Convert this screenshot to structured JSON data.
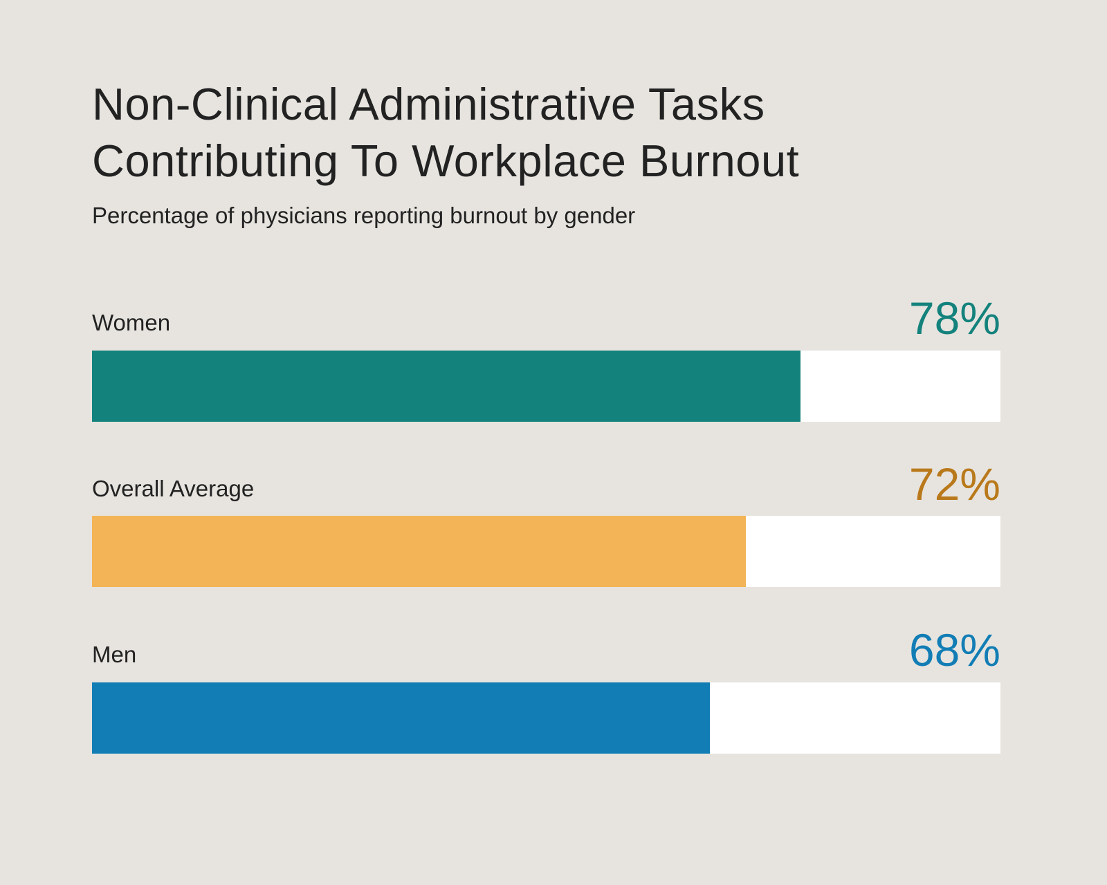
{
  "chart_data": {
    "type": "bar",
    "orientation": "horizontal",
    "title": "Non-Clinical Administrative Tasks Contributing To Workplace Burnout",
    "title_lines": [
      "Non-Clinical Administrative Tasks",
      "Contributing To Workplace Burnout"
    ],
    "subtitle": "Percentage of physicians reporting burnout by gender",
    "xlim": [
      0,
      100
    ],
    "categories": [
      "Women",
      "Overall Average",
      "Men"
    ],
    "values": [
      78,
      72,
      68
    ],
    "value_labels": [
      "78%",
      "72%",
      "68%"
    ],
    "bar_colors": [
      "#14827c",
      "#f2b457",
      "#127db5"
    ],
    "label_colors": [
      "#14827c",
      "#b9791b",
      "#127db5"
    ],
    "grid": false,
    "legend": "none"
  }
}
